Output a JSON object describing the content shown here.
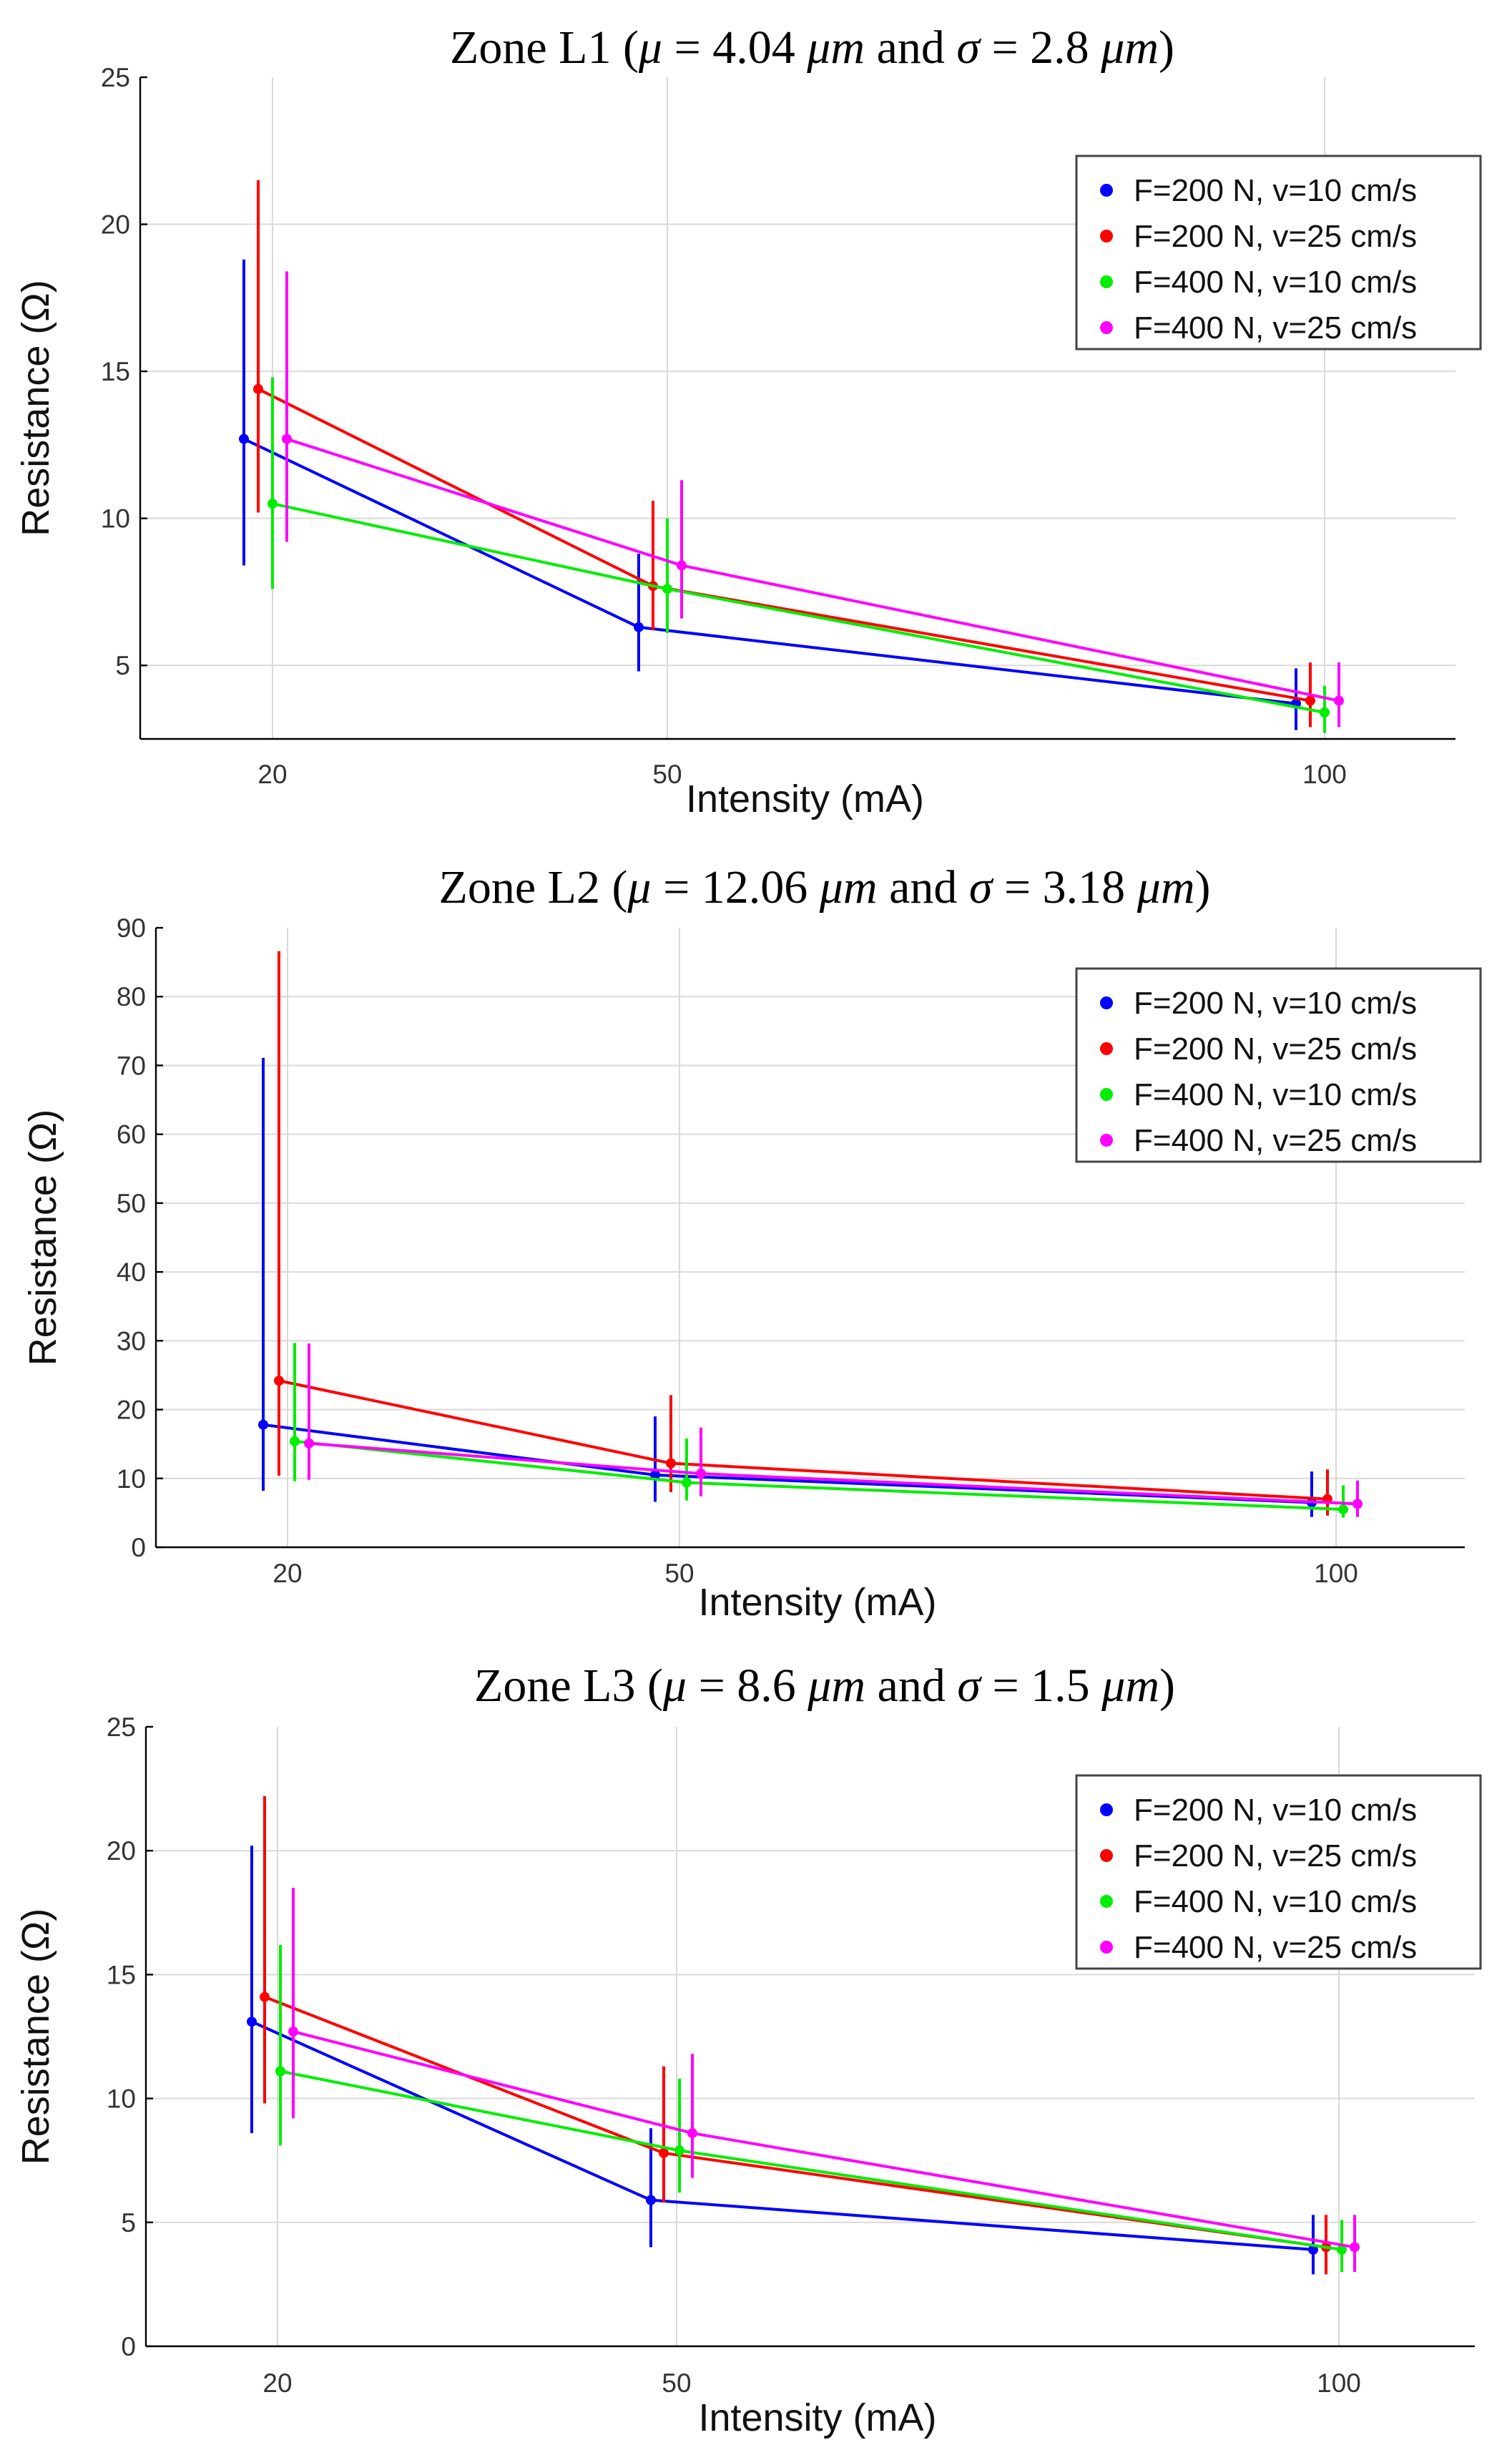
{
  "chart_data": [
    {
      "type": "line",
      "title": "Zone L1 (μ = 4.04 μm and σ = 2.8 μm)",
      "title_parts": {
        "zone": "Zone L1 (",
        "mu_sym": "μ",
        "mu_eq": " = 4.04 ",
        "unit1": "μm",
        "and": " and ",
        "sigma_sym": "σ",
        "sigma_eq": " = 2.8 ",
        "unit2": "μm",
        "close": ")"
      },
      "xlabel": "Intensity (mA)",
      "ylabel": "Resistance (Ω)",
      "x": [
        20,
        50,
        100
      ],
      "x_ticks": [
        "20",
        "50",
        "100"
      ],
      "ylim": [
        2.5,
        25
      ],
      "y_ticks": [
        "5",
        "10",
        "15",
        "20",
        "25"
      ],
      "y_tick_values": [
        5,
        10,
        15,
        20,
        25
      ],
      "legend_position": "top-right",
      "series": [
        {
          "name": "F=200 N, v=10 cm/s",
          "color": "#0000ff",
          "values": [
            12.7,
            6.3,
            3.7
          ],
          "err_low": [
            8.4,
            4.8,
            2.8
          ],
          "err_high": [
            18.8,
            8.8,
            4.9
          ]
        },
        {
          "name": "F=200 N, v=25 cm/s",
          "color": "#ff0000",
          "values": [
            14.4,
            7.7,
            3.8
          ],
          "err_low": [
            10.2,
            6.2,
            2.9
          ],
          "err_high": [
            21.5,
            10.6,
            5.1
          ]
        },
        {
          "name": "F=400 N, v=10 cm/s",
          "color": "#00ee00",
          "values": [
            10.5,
            7.6,
            3.4
          ],
          "err_low": [
            7.6,
            6.1,
            2.7
          ],
          "err_high": [
            14.8,
            10.0,
            4.3
          ]
        },
        {
          "name": "F=400 N, v=25 cm/s",
          "color": "#ff00ff",
          "values": [
            12.7,
            8.4,
            3.8
          ],
          "err_low": [
            9.2,
            6.6,
            2.9
          ],
          "err_high": [
            18.4,
            11.3,
            5.1
          ]
        }
      ]
    },
    {
      "type": "line",
      "title": "Zone L2 (μ = 12.06 μm and σ = 3.18 μm)",
      "title_parts": {
        "zone": "Zone L2 (",
        "mu_sym": "μ",
        "mu_eq": " = 12.06 ",
        "unit1": "μm",
        "and": " and ",
        "sigma_sym": "σ",
        "sigma_eq": " = 3.18 ",
        "unit2": "μm",
        "close": ")"
      },
      "xlabel": "Intensity (mA)",
      "ylabel": "Resistance (Ω)",
      "x": [
        20,
        50,
        100
      ],
      "x_ticks": [
        "20",
        "50",
        "100"
      ],
      "ylim": [
        0,
        90
      ],
      "y_ticks": [
        "0",
        "10",
        "20",
        "30",
        "40",
        "50",
        "60",
        "70",
        "80",
        "90"
      ],
      "y_tick_values": [
        0,
        10,
        20,
        30,
        40,
        50,
        60,
        70,
        80,
        90
      ],
      "legend_position": "top-right",
      "series": [
        {
          "name": "F=200 N, v=10 cm/s",
          "color": "#0000ff",
          "values": [
            17.8,
            10.5,
            6.5
          ],
          "err_low": [
            8.2,
            6.6,
            4.4
          ],
          "err_high": [
            71.1,
            19.0,
            11.0
          ]
        },
        {
          "name": "F=200 N, v=25 cm/s",
          "color": "#ff0000",
          "values": [
            24.2,
            12.2,
            7.0
          ],
          "err_low": [
            10.4,
            8.0,
            4.6
          ],
          "err_high": [
            86.6,
            22.1,
            11.3
          ]
        },
        {
          "name": "F=400 N, v=10 cm/s",
          "color": "#00ee00",
          "values": [
            15.4,
            9.4,
            5.5
          ],
          "err_low": [
            9.6,
            6.8,
            4.3
          ],
          "err_high": [
            29.7,
            15.8,
            9.0
          ]
        },
        {
          "name": "F=400 N, v=25 cm/s",
          "color": "#ff00ff",
          "values": [
            15.1,
            10.7,
            6.3
          ],
          "err_low": [
            9.8,
            7.4,
            4.4
          ],
          "err_high": [
            29.6,
            17.4,
            9.7
          ]
        }
      ]
    },
    {
      "type": "line",
      "title": "Zone L3 (μ = 8.6 μm and σ = 1.5 μm)",
      "title_parts": {
        "zone": "Zone L3 (",
        "mu_sym": "μ",
        "mu_eq": " = 8.6 ",
        "unit1": "μm",
        "and": " and ",
        "sigma_sym": "σ",
        "sigma_eq": " = 1.5 ",
        "unit2": "μm",
        "close": ")"
      },
      "xlabel": "Intensity (mA)",
      "ylabel": "Resistance (Ω)",
      "x": [
        20,
        50,
        100
      ],
      "x_ticks": [
        "20",
        "50",
        "100"
      ],
      "ylim": [
        0,
        25
      ],
      "y_ticks": [
        "0",
        "5",
        "10",
        "15",
        "20",
        "25"
      ],
      "y_tick_values": [
        0,
        5,
        10,
        15,
        20,
        25
      ],
      "legend_position": "top-right",
      "series": [
        {
          "name": "F=200 N, v=10 cm/s",
          "color": "#0000ff",
          "values": [
            13.1,
            5.9,
            3.9
          ],
          "err_low": [
            8.6,
            4.0,
            2.9
          ],
          "err_high": [
            20.2,
            8.8,
            5.3
          ]
        },
        {
          "name": "F=200 N, v=25 cm/s",
          "color": "#ff0000",
          "values": [
            14.1,
            7.8,
            4.0
          ],
          "err_low": [
            9.8,
            5.8,
            2.9
          ],
          "err_high": [
            22.2,
            11.3,
            5.3
          ]
        },
        {
          "name": "F=400 N, v=10 cm/s",
          "color": "#00ee00",
          "values": [
            11.1,
            7.9,
            3.9
          ],
          "err_low": [
            8.1,
            6.2,
            3.0
          ],
          "err_high": [
            16.2,
            10.8,
            5.1
          ]
        },
        {
          "name": "F=400 N, v=25 cm/s",
          "color": "#ff00ff",
          "values": [
            12.7,
            8.6,
            4.0
          ],
          "err_low": [
            9.2,
            6.8,
            3.0
          ],
          "err_high": [
            18.5,
            11.8,
            5.3
          ]
        }
      ]
    }
  ]
}
